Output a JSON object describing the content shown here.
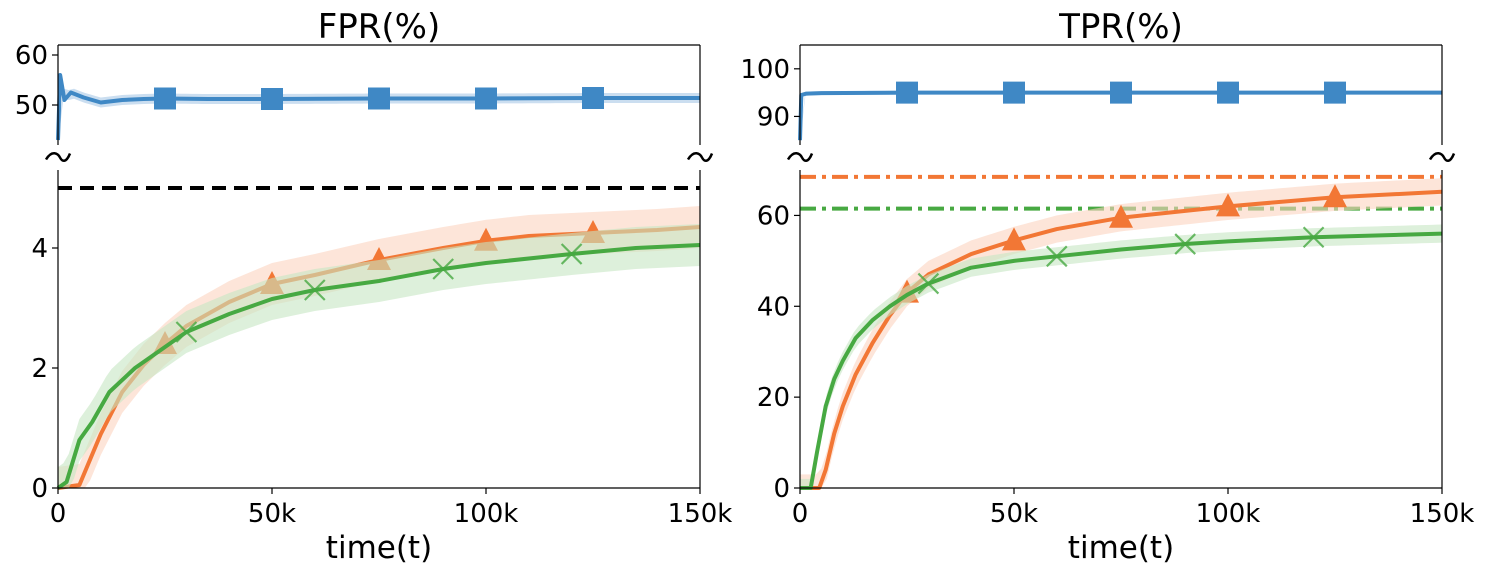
{
  "colors": {
    "blue": "#3f88c5",
    "orange": "#f27735",
    "green": "#47a942",
    "black": "#000000",
    "orange_band": "#fbd3bf",
    "green_band": "#c6e6c3",
    "blue_band": "#a9c8e6"
  },
  "chart_data": [
    {
      "type": "line",
      "title": "FPR(%)",
      "xlabel": "time(t)",
      "ylabel": "",
      "broken_y_axis": true,
      "xlim": [
        0,
        150000
      ],
      "x_ticks": [
        {
          "v": 0,
          "label": "0"
        },
        {
          "v": 50000,
          "label": "50k"
        },
        {
          "v": 100000,
          "label": "100k"
        },
        {
          "v": 150000,
          "label": "150k"
        }
      ],
      "top_panel": {
        "ylim": [
          42,
          62
        ],
        "y_ticks": [
          {
            "v": 50,
            "label": "50"
          },
          {
            "v": 60,
            "label": "60"
          }
        ],
        "series": [
          {
            "color": "blue",
            "marker": "square",
            "x": [
              0,
              500,
              1500,
              3000,
              6000,
              10000,
              15000,
              20000,
              25000,
              35000,
              50000,
              75000,
              100000,
              125000,
              150000
            ],
            "y": [
              43,
              56,
              51,
              52.5,
              51.5,
              50.5,
              51,
              51.2,
              51.3,
              51.2,
              51.2,
              51.3,
              51.3,
              51.4,
              51.4
            ],
            "band": 1.0,
            "markers_x": [
              25000,
              50000,
              75000,
              100000,
              125000
            ]
          }
        ]
      },
      "bottom_panel": {
        "ylim": [
          0,
          5.3
        ],
        "y_ticks": [
          {
            "v": 0,
            "label": "0"
          },
          {
            "v": 2,
            "label": "2"
          },
          {
            "v": 4,
            "label": "4"
          }
        ],
        "series": [
          {
            "color": "orange",
            "marker": "triangle",
            "x": [
              0,
              5000,
              10000,
              15000,
              20000,
              25000,
              30000,
              40000,
              50000,
              60000,
              75000,
              90000,
              100000,
              110000,
              125000,
              140000,
              150000
            ],
            "y": [
              0,
              0.05,
              0.9,
              1.6,
              2.05,
              2.4,
              2.7,
              3.1,
              3.4,
              3.55,
              3.8,
              4.0,
              4.12,
              4.2,
              4.25,
              4.3,
              4.35
            ],
            "band": 0.35,
            "markers_x": [
              25000,
              50000,
              75000,
              100000,
              125000
            ]
          },
          {
            "color": "green",
            "marker": "x",
            "x": [
              0,
              2000,
              5000,
              8000,
              12000,
              18000,
              25000,
              30000,
              40000,
              50000,
              60000,
              75000,
              90000,
              100000,
              120000,
              135000,
              150000
            ],
            "y": [
              0,
              0.1,
              0.8,
              1.1,
              1.6,
              2.0,
              2.35,
              2.6,
              2.9,
              3.15,
              3.3,
              3.45,
              3.65,
              3.75,
              3.9,
              4.0,
              4.05
            ],
            "band": 0.35,
            "markers_x": [
              30000,
              60000,
              90000,
              120000
            ]
          }
        ],
        "reference_lines": [
          {
            "y": 5,
            "color": "black",
            "style": "dashed"
          }
        ]
      }
    },
    {
      "type": "line",
      "title": "TPR(%)",
      "xlabel": "time(t)",
      "ylabel": "",
      "broken_y_axis": true,
      "xlim": [
        0,
        150000
      ],
      "x_ticks": [
        {
          "v": 0,
          "label": "0"
        },
        {
          "v": 50000,
          "label": "50k"
        },
        {
          "v": 100000,
          "label": "100k"
        },
        {
          "v": 150000,
          "label": "150k"
        }
      ],
      "top_panel": {
        "ylim": [
          84,
          105
        ],
        "y_ticks": [
          {
            "v": 90,
            "label": "90"
          },
          {
            "v": 100,
            "label": "100"
          }
        ],
        "series": [
          {
            "color": "blue",
            "marker": "square",
            "x": [
              0,
              300,
              1500,
              5000,
              25000,
              50000,
              75000,
              100000,
              125000,
              150000
            ],
            "y": [
              85,
              94.5,
              94.8,
              94.9,
              95.0,
              95.0,
              95.0,
              95.0,
              95.0,
              95.0
            ],
            "band": 0.4,
            "markers_x": [
              25000,
              50000,
              75000,
              100000,
              125000
            ]
          }
        ]
      },
      "bottom_panel": {
        "ylim": [
          0,
          70
        ],
        "y_ticks": [
          {
            "v": 0,
            "label": "0"
          },
          {
            "v": 20,
            "label": "20"
          },
          {
            "v": 40,
            "label": "40"
          },
          {
            "v": 60,
            "label": "60"
          }
        ],
        "series": [
          {
            "color": "orange",
            "marker": "triangle",
            "x": [
              0,
              4500,
              6000,
              8000,
              10000,
              13000,
              17000,
              21000,
              25000,
              30000,
              40000,
              50000,
              60000,
              75000,
              90000,
              100000,
              125000,
              150000
            ],
            "y": [
              0,
              0,
              4,
              12,
              18,
              25,
              32,
              38,
              43,
              47,
              51.5,
              54.5,
              57,
              59.5,
              61,
              62,
              64,
              65.2
            ],
            "band": 3.0,
            "markers_x": [
              25000,
              50000,
              75000,
              100000,
              125000
            ]
          },
          {
            "color": "green",
            "marker": "x",
            "x": [
              0,
              2500,
              4000,
              6000,
              8000,
              10000,
              13000,
              17000,
              21000,
              25000,
              30000,
              40000,
              50000,
              60000,
              75000,
              90000,
              100000,
              120000,
              150000
            ],
            "y": [
              0,
              0,
              8,
              18,
              24,
              28,
              33,
              37,
              40,
              42.5,
              45,
              48.5,
              50,
              51,
              52.5,
              53.7,
              54.3,
              55.2,
              56
            ],
            "band": 2.0,
            "markers_x": [
              30000,
              60000,
              90000,
              120000
            ]
          }
        ],
        "reference_lines": [
          {
            "y": 68.5,
            "color": "orange",
            "style": "dashdot"
          },
          {
            "y": 61.5,
            "color": "green",
            "style": "dashdot"
          }
        ]
      }
    }
  ]
}
